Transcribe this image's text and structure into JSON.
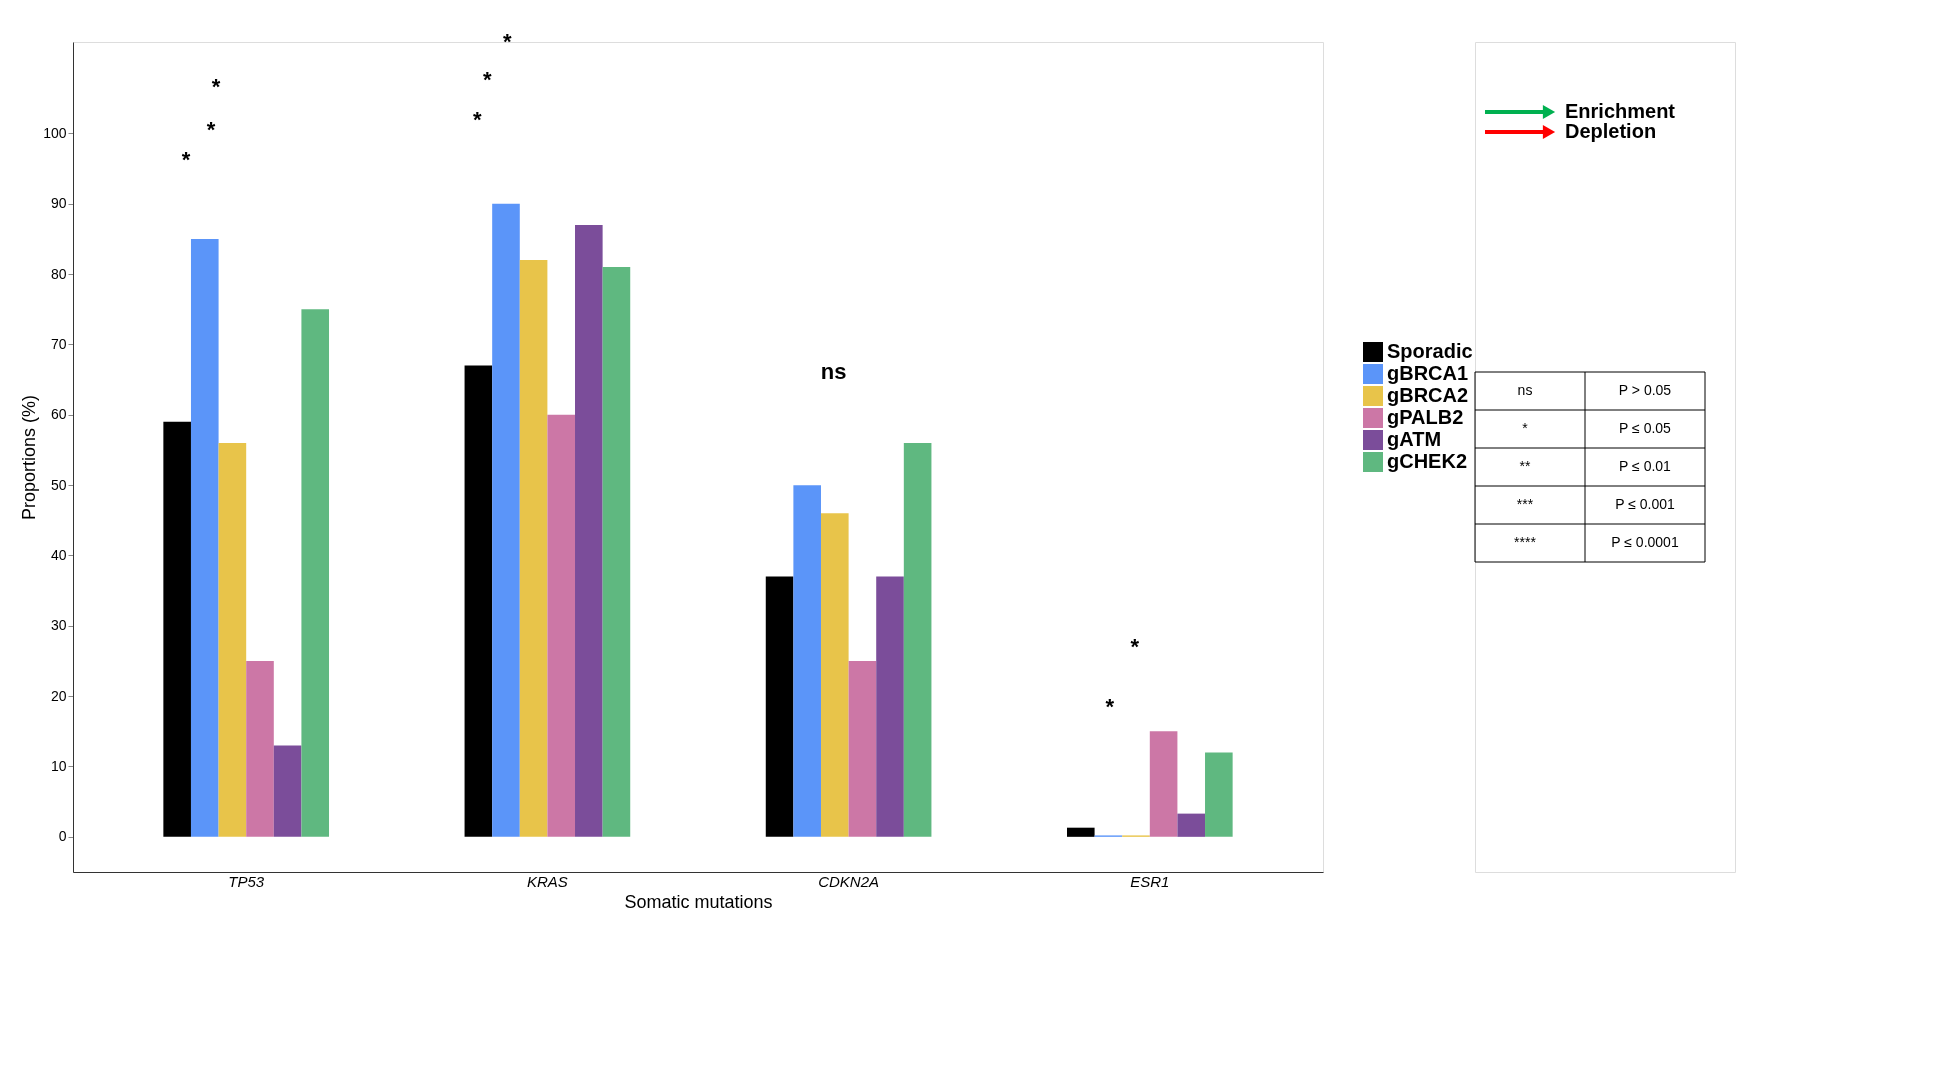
{
  "chart_data": {
    "type": "bar",
    "xlabel": "Somatic mutations",
    "ylabel": "Proportions (%)",
    "categories": [
      "TP53",
      "KRAS",
      "CDKN2A",
      "ESR1"
    ],
    "series": [
      {
        "name": "Sporadic",
        "color": "#000000",
        "values": [
          59,
          67,
          37,
          1.3
        ]
      },
      {
        "name": "gBRCA1",
        "color": "#5b95f9",
        "values": [
          85,
          90,
          50,
          0.2
        ]
      },
      {
        "name": "gBRCA2",
        "color": "#e8c44a",
        "values": [
          56,
          82,
          46,
          0.2
        ]
      },
      {
        "name": "gPALB2",
        "color": "#cc77a6",
        "values": [
          25,
          60,
          25,
          15
        ]
      },
      {
        "name": "gATM",
        "color": "#7b4d9a",
        "values": [
          13,
          87,
          37,
          3.3
        ]
      },
      {
        "name": "gCHEK2",
        "color": "#5fb880",
        "values": [
          75,
          81,
          56,
          12
        ]
      }
    ],
    "ylim": [
      -5,
      113
    ],
    "yticks": [
      0,
      10,
      20,
      30,
      40,
      50,
      60,
      70,
      80,
      90,
      100
    ],
    "grid": false,
    "legend": "right",
    "annotations": [
      "*",
      "*",
      "*",
      "*",
      "*",
      "*",
      "ns",
      "*",
      "*",
      "Enrichment",
      "Depletion",
      "ns",
      "P > 0.05",
      "*",
      "P ≤ 0.05",
      "**",
      "P ≤ 0.01",
      "***",
      "P ≤ 0.001",
      "****",
      "P ≤ 0.0001"
    ]
  }
}
